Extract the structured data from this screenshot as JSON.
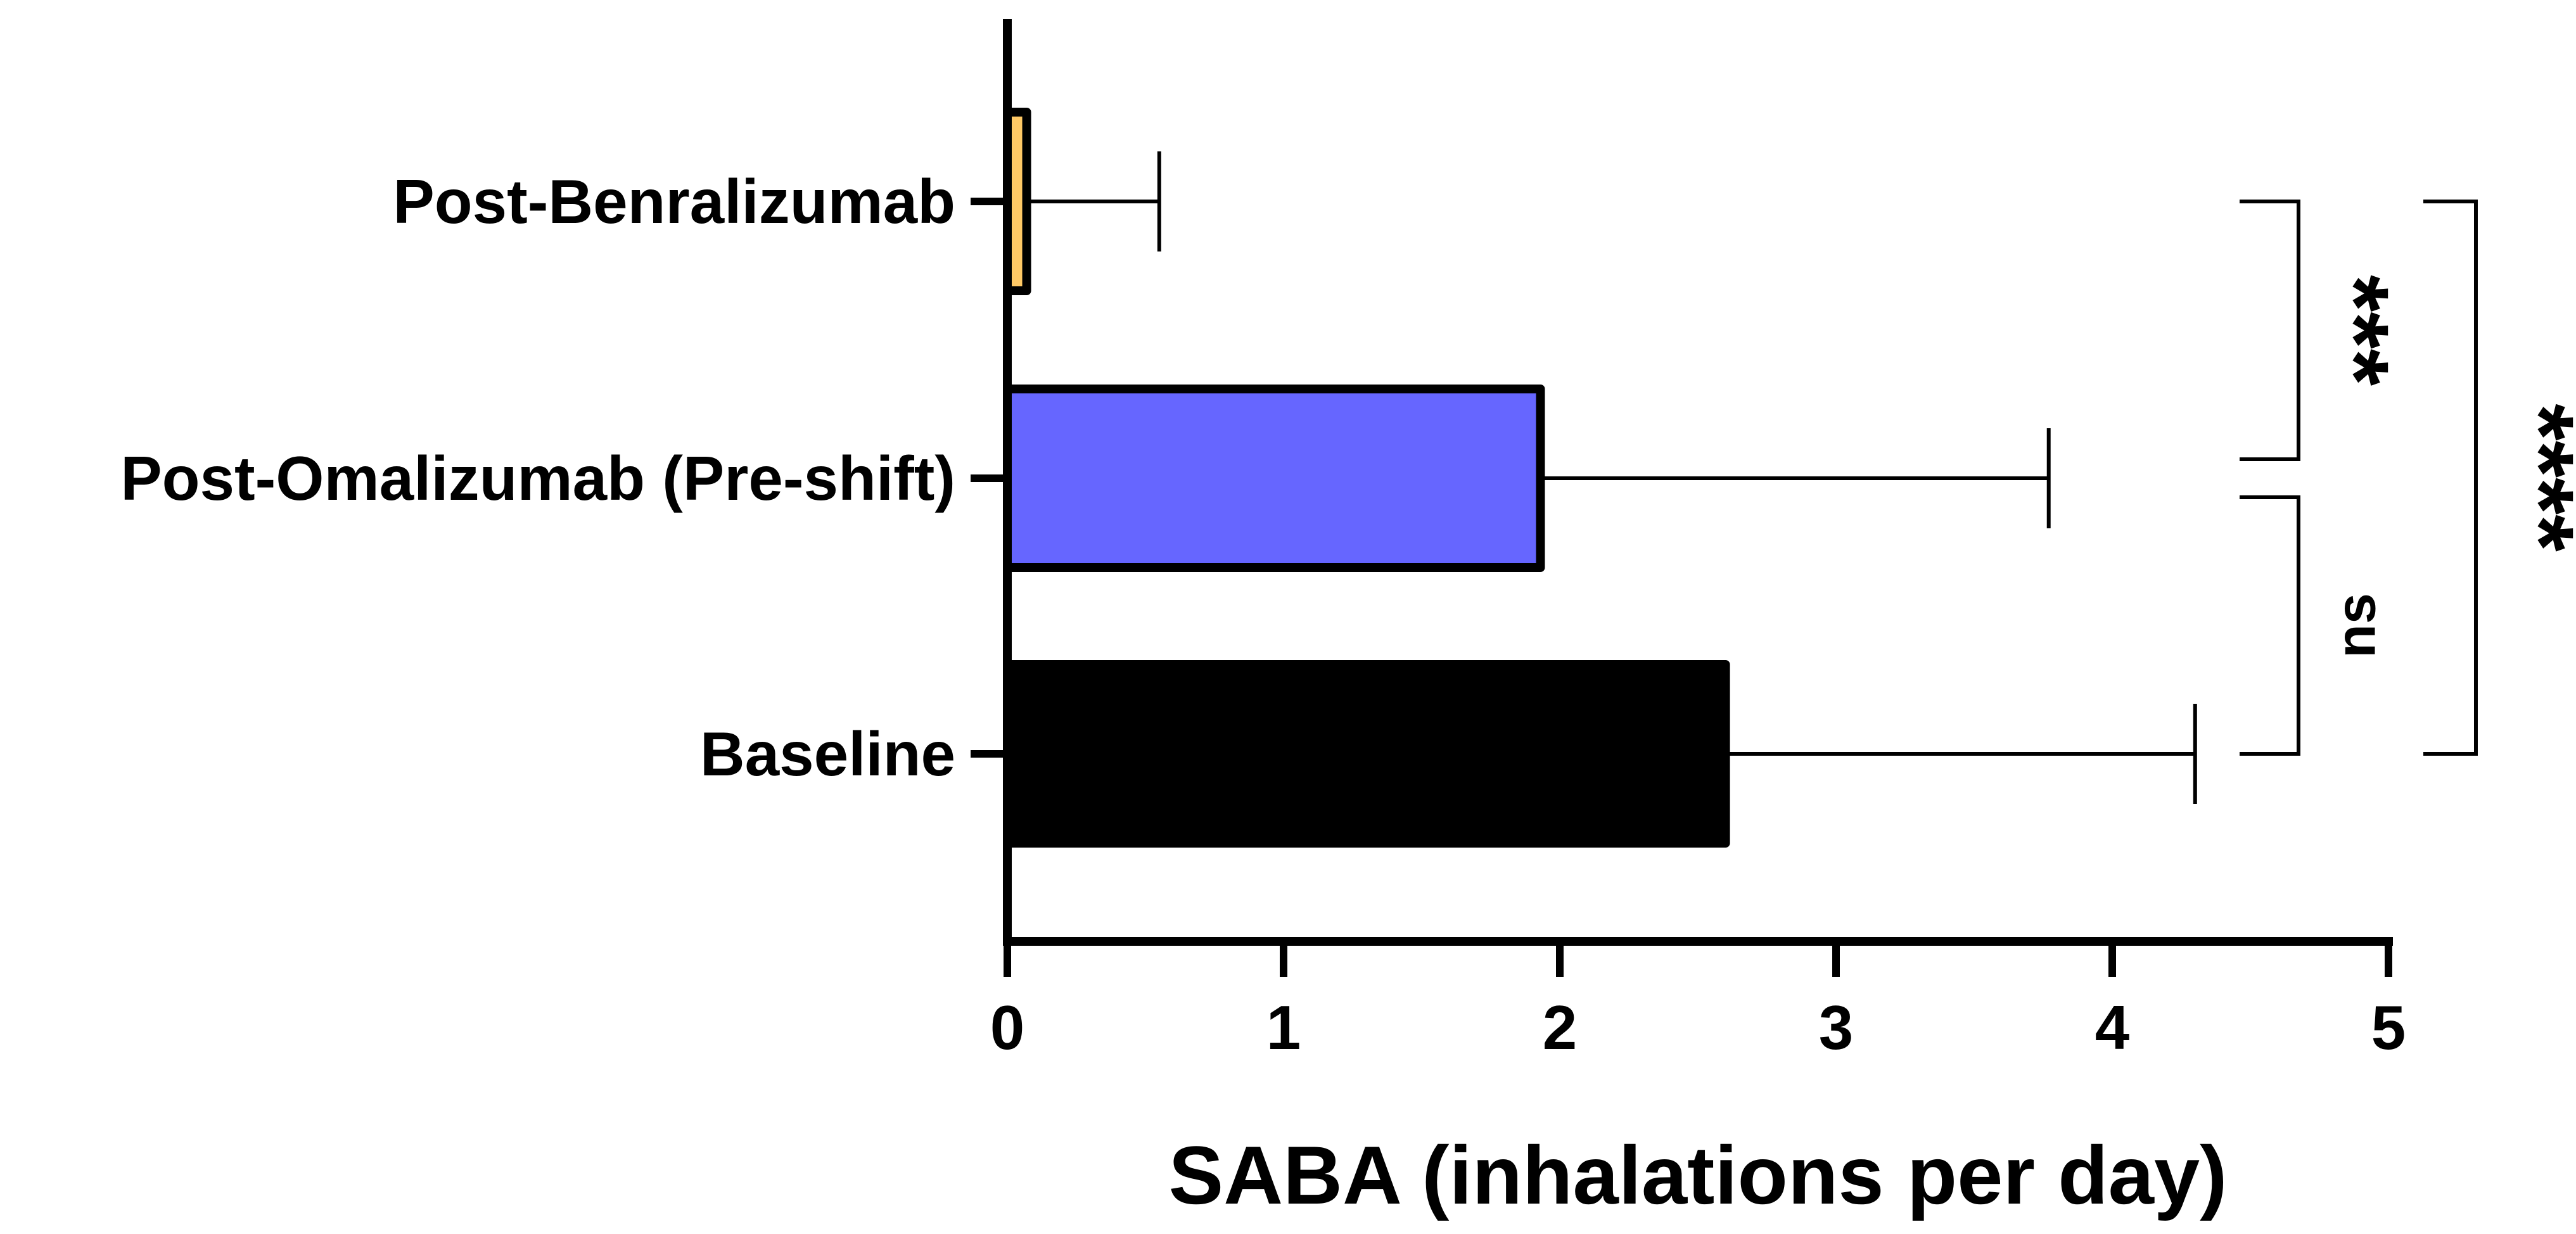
{
  "chart_data": {
    "type": "bar",
    "orientation": "horizontal",
    "categories": [
      "Baseline",
      "Post-Omalizumab (Pre-shift)",
      "Post-Benralizumab"
    ],
    "values": [
      2.6,
      1.93,
      0.07
    ],
    "error_upper": [
      4.3,
      3.77,
      0.55
    ],
    "bar_colors": [
      "#000000",
      "#6666ff",
      "#ffc966"
    ],
    "xlabel": "SABA (inhalations per day)",
    "ylabel": "",
    "title": "",
    "xlim": [
      0,
      5
    ],
    "xticks": [
      0,
      1,
      2,
      3,
      4,
      5
    ],
    "grid": false,
    "legend": "none",
    "significance": [
      {
        "from": "Post-Omalizumab (Pre-shift)",
        "to": "Post-Benralizumab",
        "label": "***"
      },
      {
        "from": "Baseline",
        "to": "Post-Omalizumab (Pre-shift)",
        "label": "ns"
      },
      {
        "from": "Baseline",
        "to": "Post-Benralizumab",
        "label": "****"
      }
    ]
  }
}
